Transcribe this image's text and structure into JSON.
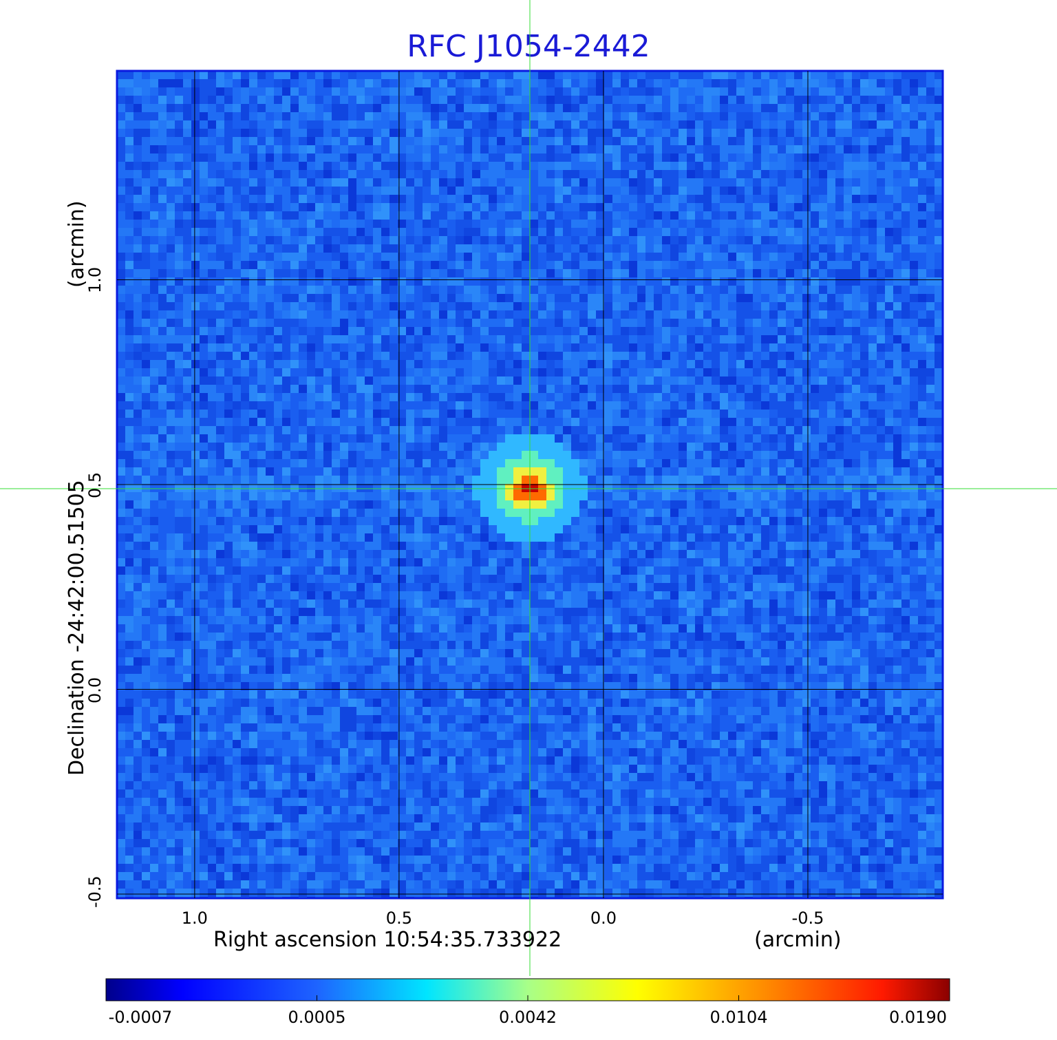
{
  "chart_data": {
    "type": "heatmap",
    "title": "RFC J1054-2442",
    "xlabel": "Right ascension  10:54:35.733922",
    "xunit": "(arcmin)",
    "ylabel": "Declination  -24:42:00.51505",
    "yunit": "(arcmin)",
    "x_ticks": [
      "1.0",
      "0.5",
      "0.0",
      "-0.5"
    ],
    "x_tick_values": [
      1.0,
      0.5,
      0.0,
      -0.5
    ],
    "y_ticks": [
      "1.0",
      "0.5",
      "0.0",
      "-0.5"
    ],
    "y_tick_values": [
      1.0,
      0.5,
      0.0,
      -0.5
    ],
    "xlim": [
      1.19,
      -0.83
    ],
    "ylim": [
      -0.51,
      1.51
    ],
    "grid": true,
    "crosshair": {
      "x": 0.18,
      "y": 0.49
    },
    "source_peak": {
      "x": 0.18,
      "y": 0.49,
      "value": 0.019
    },
    "colorbar": {
      "ticks": [
        "-0.0007",
        "0.0005",
        "0.0042",
        "0.0104",
        "0.0190"
      ],
      "colors": [
        "#00008b",
        "#0000ff",
        "#1e5eff",
        "#00ffff",
        "#b4ff7a",
        "#ffff00",
        "#ff8c00",
        "#ff0000",
        "#8b0000"
      ]
    },
    "colors": {
      "title": "#1a1ad6",
      "background_field": "#1f6ff0",
      "grid": "#000000",
      "crosshair": "#33dd33"
    }
  }
}
